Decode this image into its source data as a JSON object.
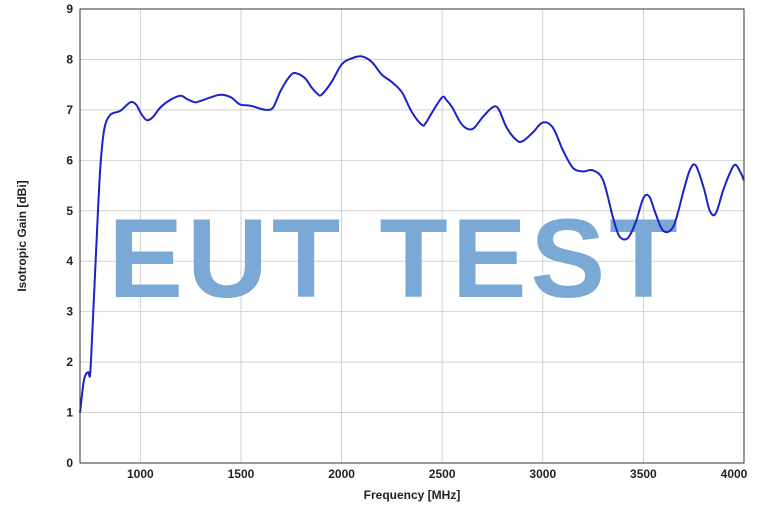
{
  "chart_data": {
    "type": "line",
    "title": "",
    "xlabel": "Frequency [MHz]",
    "ylabel": "Isotropic Gain [dBi]",
    "xlim": [
      700,
      4000
    ],
    "ylim": [
      0,
      9
    ],
    "x_ticks": [
      1000,
      1500,
      2000,
      2500,
      3000,
      3500,
      4000
    ],
    "y_ticks": [
      0,
      1,
      2,
      3,
      4,
      5,
      6,
      7,
      8,
      9
    ],
    "grid": true,
    "legend": "none",
    "series": [
      {
        "color": "#1a22c8",
        "x": [
          700,
          720,
          740,
          750,
          760,
          780,
          800,
          820,
          850,
          900,
          950,
          980,
          1000,
          1030,
          1060,
          1100,
          1150,
          1200,
          1230,
          1270,
          1300,
          1350,
          1400,
          1450,
          1480,
          1500,
          1550,
          1600,
          1630,
          1660,
          1700,
          1750,
          1780,
          1820,
          1850,
          1880,
          1900,
          1950,
          2000,
          2050,
          2100,
          2150,
          2200,
          2250,
          2300,
          2350,
          2400,
          2420,
          2450,
          2500,
          2520,
          2550,
          2600,
          2650,
          2700,
          2750,
          2780,
          2820,
          2870,
          2900,
          2950,
          3000,
          3050,
          3100,
          3150,
          3200,
          3250,
          3300,
          3350,
          3380,
          3420,
          3460,
          3500,
          3530,
          3560,
          3600,
          3650,
          3700,
          3730,
          3760,
          3800,
          3830,
          3860,
          3900,
          3950,
          3980,
          4000
        ],
        "y": [
          1.0,
          1.65,
          1.8,
          1.75,
          2.5,
          4.2,
          5.8,
          6.6,
          6.9,
          6.98,
          7.15,
          7.1,
          6.95,
          6.8,
          6.85,
          7.05,
          7.2,
          7.28,
          7.22,
          7.15,
          7.18,
          7.25,
          7.3,
          7.25,
          7.15,
          7.1,
          7.08,
          7.02,
          7.0,
          7.05,
          7.4,
          7.7,
          7.72,
          7.62,
          7.45,
          7.32,
          7.3,
          7.55,
          7.9,
          8.02,
          8.06,
          7.95,
          7.7,
          7.55,
          7.35,
          6.95,
          6.7,
          6.75,
          6.95,
          7.25,
          7.2,
          7.05,
          6.7,
          6.62,
          6.85,
          7.05,
          7.02,
          6.65,
          6.4,
          6.38,
          6.55,
          6.75,
          6.65,
          6.2,
          5.85,
          5.78,
          5.8,
          5.6,
          4.85,
          4.5,
          4.45,
          4.75,
          5.25,
          5.28,
          4.95,
          4.6,
          4.7,
          5.4,
          5.8,
          5.9,
          5.45,
          5.0,
          4.95,
          5.45,
          5.9,
          5.78,
          5.6
        ]
      }
    ]
  },
  "watermark": "EUT TEST"
}
